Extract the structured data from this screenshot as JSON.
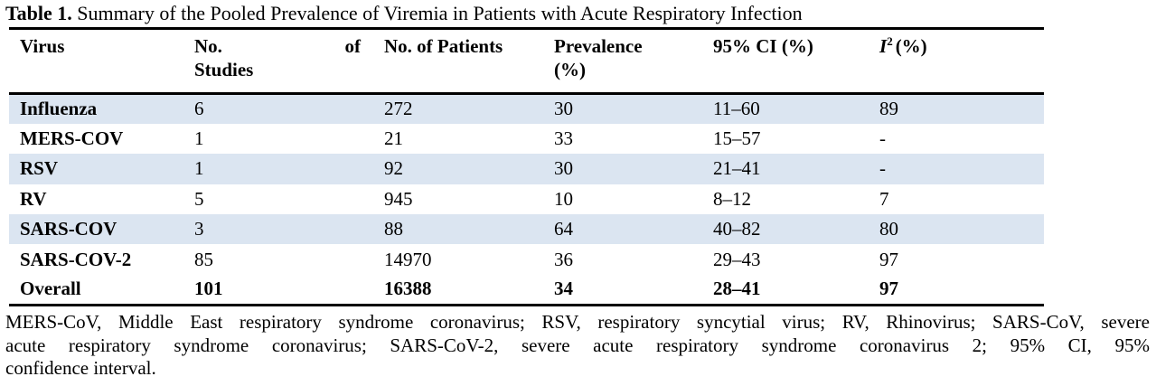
{
  "title": {
    "label": "Table 1.",
    "text": " Summary of the Pooled Prevalence of Viremia in Patients with Acute Respiratory Infection"
  },
  "table": {
    "headers": {
      "virus": "Virus",
      "studies_word1": "No.",
      "studies_word2": "of",
      "studies_line2": "Studies",
      "patients": "No. of Patients",
      "prevalence_line1": "Prevalence",
      "prevalence_line2": "(%)",
      "ci": "95% CI (%)",
      "i2_base": "I",
      "i2_sup": "2",
      "i2_rest": "(%)"
    },
    "rows": [
      {
        "virus": "Influenza",
        "studies": "6",
        "patients": "272",
        "prevalence": "30",
        "ci": "11–60",
        "i2": "89",
        "shaded": true,
        "bold": false
      },
      {
        "virus": "MERS-COV",
        "studies": "1",
        "patients": "21",
        "prevalence": "33",
        "ci": "15–57",
        "i2": "-",
        "shaded": false,
        "bold": false
      },
      {
        "virus": "RSV",
        "studies": "1",
        "patients": "92",
        "prevalence": "30",
        "ci": "21–41",
        "i2": "-",
        "shaded": true,
        "bold": false
      },
      {
        "virus": "RV",
        "studies": "5",
        "patients": "945",
        "prevalence": "10",
        "ci": "8–12",
        "i2": "7",
        "shaded": false,
        "bold": false
      },
      {
        "virus": "SARS-COV",
        "studies": "3",
        "patients": "88",
        "prevalence": "64",
        "ci": "40–82",
        "i2": "80",
        "shaded": true,
        "bold": false
      },
      {
        "virus": "SARS-COV-2",
        "studies": "85",
        "patients": "14970",
        "prevalence": "36",
        "ci": "29–43",
        "i2": "97",
        "shaded": false,
        "bold": false
      },
      {
        "virus": "Overall",
        "studies": "101",
        "patients": "16388",
        "prevalence": "34",
        "ci": "28–41",
        "i2": "97",
        "shaded": false,
        "bold": true
      }
    ]
  },
  "footnote": {
    "lines": [
      "MERS-CoV, Middle East respiratory syndrome coronavirus; RSV, respiratory syncytial virus; RV, Rhinovirus; SARS-CoV, severe",
      "acute respiratory syndrome coronavirus; SARS-CoV-2, severe acute respiratory syndrome coronavirus 2; 95% CI, 95%",
      "confidence interval."
    ],
    "full_text": "MERS-CoV, Middle East respiratory syndrome coronavirus; RSV, respiratory syncytial virus; RV, Rhinovirus; SARS-CoV, severe acute respiratory syndrome coronavirus; SARS-CoV-2, severe acute respiratory syndrome coronavirus 2; 95% CI, 95% confidence interval."
  },
  "colors": {
    "row_shading": "#dbe5f1",
    "rule": "#000000",
    "text": "#000000",
    "background": "#ffffff"
  }
}
